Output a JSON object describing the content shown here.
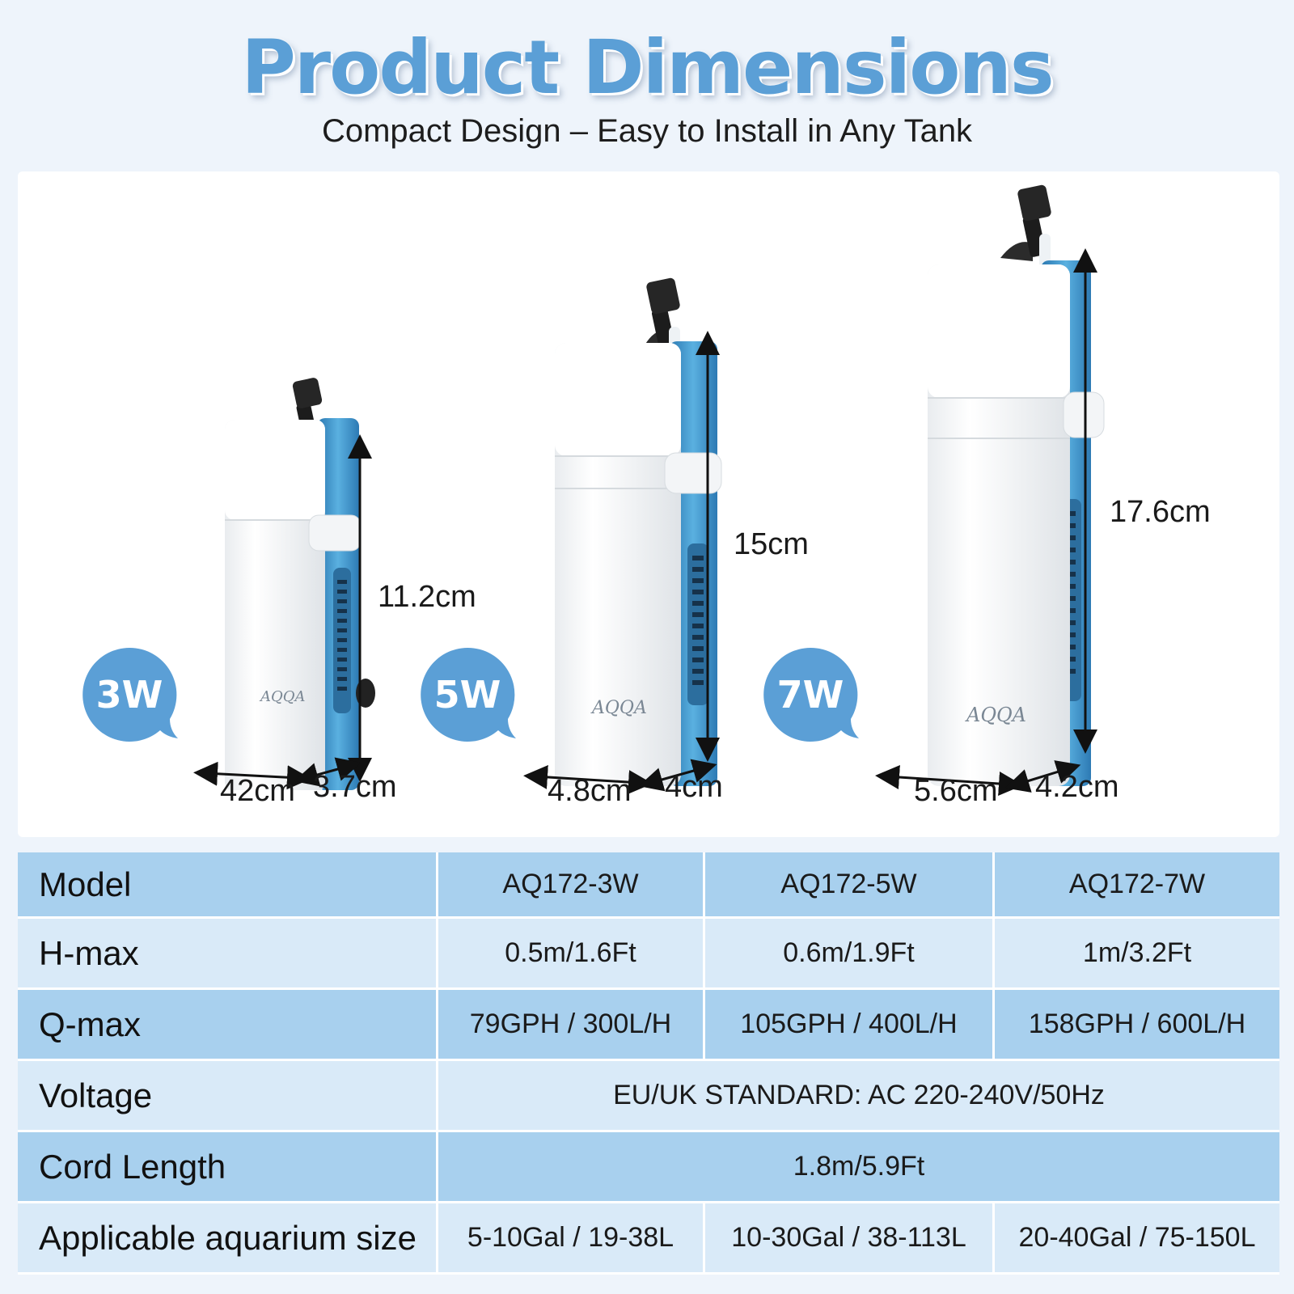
{
  "header": {
    "title": "Product Dimensions",
    "subtitle": "Compact Design – Easy to Install in Any Tank"
  },
  "products": [
    {
      "badge": "3W",
      "height": "11.2cm",
      "width": "42cm",
      "depth": "3.7cm",
      "logo": "AQQA"
    },
    {
      "badge": "5W",
      "height": "15cm",
      "width": "4.8cm",
      "depth": "4cm",
      "logo": "AQQA"
    },
    {
      "badge": "7W",
      "height": "17.6cm",
      "width": "5.6cm",
      "depth": "4.2cm",
      "logo": "AQQA"
    }
  ],
  "colors": {
    "title": "#5b9fd6",
    "badge": "#5b9fd6",
    "pump_blue": "#3d8fc4",
    "row_dark": "#a8d0ee",
    "row_light": "#d9eaf8"
  },
  "spec_table": {
    "rows": [
      {
        "label": "Model",
        "values": [
          "AQ172-3W",
          "AQ172-5W",
          "AQ172-7W"
        ]
      },
      {
        "label": "H-max",
        "values": [
          "0.5m/1.6Ft",
          "0.6m/1.9Ft",
          "1m/3.2Ft"
        ]
      },
      {
        "label": "Q-max",
        "values": [
          "79GPH / 300L/H",
          "105GPH / 400L/H",
          "158GPH / 600L/H"
        ]
      },
      {
        "label": "Voltage",
        "value": "EU/UK STANDARD: AC 220-240V/50Hz"
      },
      {
        "label": "Cord Length",
        "value": "1.8m/5.9Ft"
      },
      {
        "label": "Applicable aquarium size",
        "values": [
          "5-10Gal / 19-38L",
          "10-30Gal / 38-113L",
          "20-40Gal / 75-150L"
        ]
      }
    ]
  }
}
